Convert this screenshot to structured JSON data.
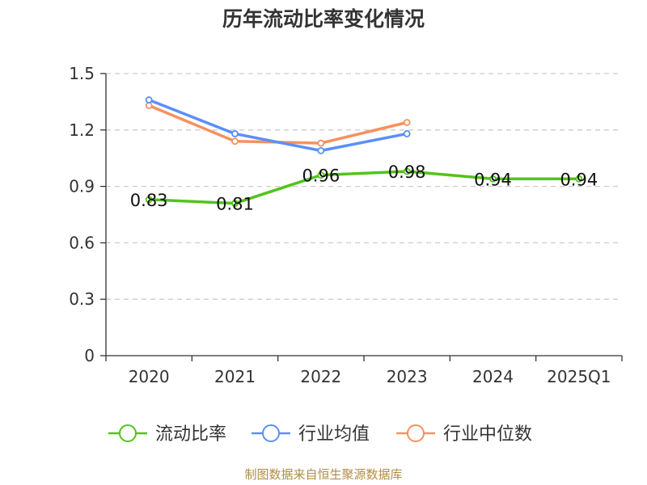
{
  "chart_data": {
    "type": "line",
    "title": "历年流动比率变化情况",
    "categories": [
      "2020",
      "2021",
      "2022",
      "2023",
      "2024",
      "2025Q1"
    ],
    "ylim": [
      0,
      1.5
    ],
    "yticks": [
      "0",
      "0.3",
      "0.6",
      "0.9",
      "1.2",
      "1.5"
    ],
    "ytick_values": [
      0,
      0.3,
      0.6,
      0.9,
      1.2,
      1.5
    ],
    "grid": true,
    "legend_position": "bottom",
    "series": [
      {
        "name": "流动比率",
        "color": "#52c41a",
        "values": [
          0.83,
          0.81,
          0.96,
          0.98,
          0.94,
          0.94
        ],
        "labels": [
          "0.83",
          "0.81",
          "0.96",
          "0.98",
          "0.94",
          "0.94"
        ]
      },
      {
        "name": "行业均值",
        "color": "#5b8ff9",
        "values": [
          1.36,
          1.18,
          1.09,
          1.18,
          null,
          null
        ]
      },
      {
        "name": "行业中位数",
        "color": "#f6915e",
        "values": [
          1.33,
          1.14,
          1.13,
          1.24,
          null,
          null
        ]
      }
    ],
    "source": "制图数据来自恒生聚源数据库"
  }
}
